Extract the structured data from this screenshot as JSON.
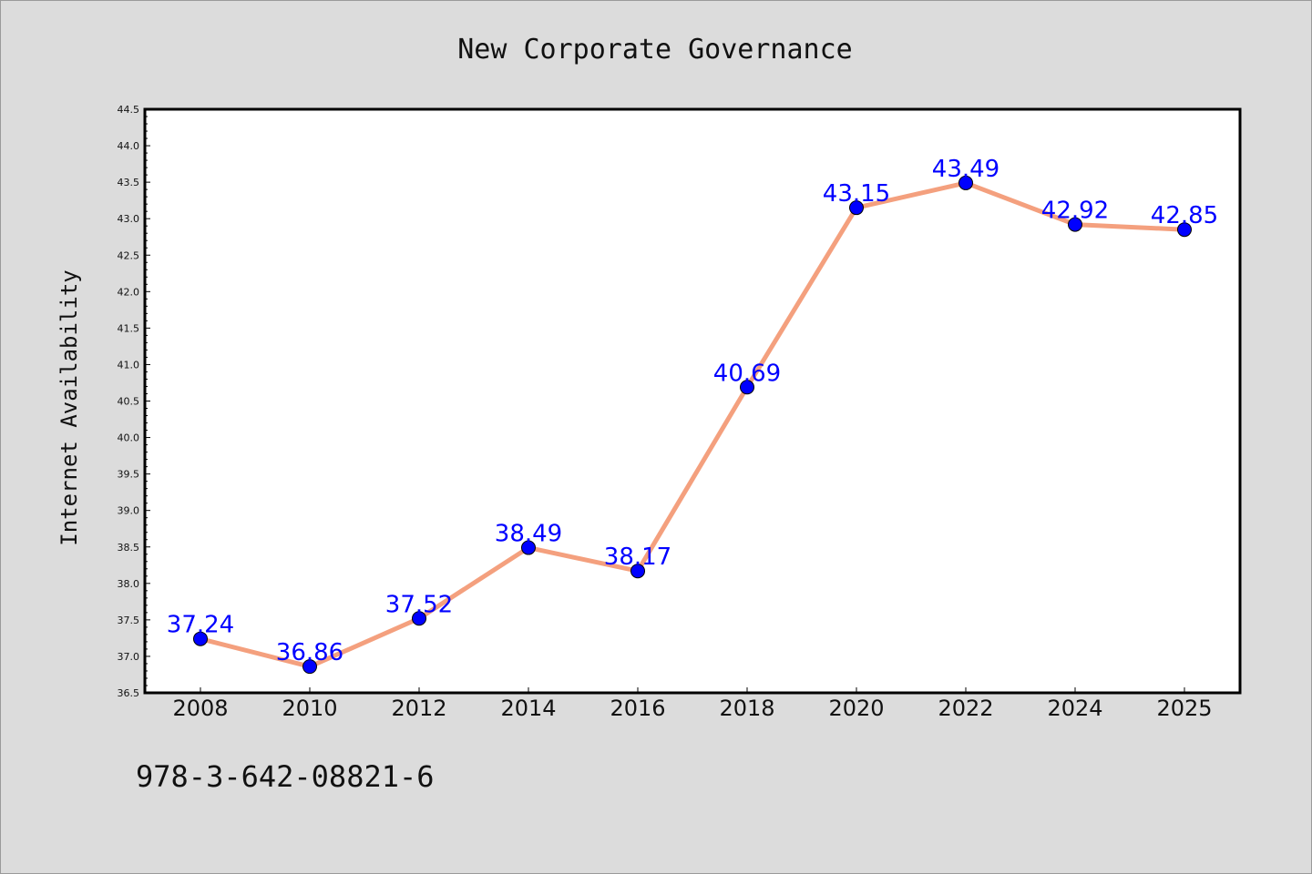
{
  "chart_data": {
    "type": "line",
    "title": "New Corporate Governance",
    "xlabel": "",
    "ylabel": "Internet Availability",
    "categories": [
      "2008",
      "2010",
      "2012",
      "2014",
      "2016",
      "2018",
      "2020",
      "2022",
      "2024",
      "2025"
    ],
    "series": [
      {
        "values": [
          37.24,
          36.86,
          37.52,
          38.49,
          38.17,
          40.69,
          43.15,
          43.49,
          42.92,
          42.85
        ],
        "data_labels": [
          "37.24",
          "36.86",
          "37.52",
          "38.49",
          "38.17",
          "40.69",
          "43.15",
          "43.49",
          "42.92",
          "42.85"
        ]
      }
    ],
    "ylim": [
      36.5,
      44.5
    ],
    "y_ticks": [
      "36.5",
      "37.0",
      "37.5",
      "38.0",
      "38.5",
      "39.0",
      "39.5",
      "40.0",
      "40.5",
      "41.0",
      "41.5",
      "42.0",
      "42.5",
      "43.0",
      "43.5",
      "44.0",
      "44.5"
    ],
    "grid": false,
    "legend": "none",
    "colors": {
      "line": "#f4a07e",
      "marker": "#0000ff",
      "marker_edge": "#000000",
      "data_label": "#0000ff",
      "background": "#dcdcdc",
      "plot_background": "#ffffff"
    }
  },
  "annotation": {
    "code": "978-3-642-08821-6"
  }
}
